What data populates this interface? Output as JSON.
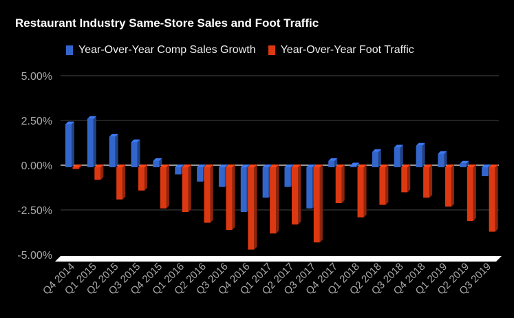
{
  "chart_data": {
    "type": "bar",
    "title": "Restaurant Industry Same-Store Sales and Foot Traffic",
    "categories": [
      "Q4 2014",
      "Q1 2015",
      "Q2 2015",
      "Q3 2015",
      "Q4 2015",
      "Q1 2016",
      "Q2 2016",
      "Q3 2016",
      "Q4 2016",
      "Q1 2017",
      "Q2 2017",
      "Q3 2017",
      "Q4 2017",
      "Q1 2018",
      "Q2 2018",
      "Q3 2018",
      "Q4 2018",
      "Q1 2019",
      "Q2 2019",
      "Q3 2019"
    ],
    "series": [
      {
        "name": "Year-Over-Year Comp Sales Growth",
        "color": "#3366cc",
        "values": [
          2.4,
          2.7,
          1.7,
          1.4,
          0.35,
          -0.4,
          -0.8,
          -1.1,
          -2.5,
          -1.7,
          -1.1,
          -2.3,
          0.35,
          0.1,
          0.85,
          1.1,
          1.2,
          0.75,
          0.2,
          -0.5
        ]
      },
      {
        "name": "Year-Over-Year Foot Traffic",
        "color": "#dc3912",
        "values": [
          -0.1,
          -0.7,
          -1.8,
          -1.3,
          -2.3,
          -2.5,
          -3.1,
          -3.5,
          -4.6,
          -3.7,
          -3.2,
          -4.2,
          -2.0,
          -2.8,
          -2.1,
          -1.4,
          -1.7,
          -2.2,
          -3.0,
          -3.6
        ]
      }
    ],
    "yticks": [
      "5.00%",
      "2.50%",
      "0.00%",
      "-2.50%",
      "-5.00%"
    ],
    "ytick_values": [
      5,
      2.5,
      0,
      -2.5,
      -5
    ],
    "ylim": [
      -5,
      5
    ],
    "xlabel": "",
    "ylabel": "",
    "legend_position": "top",
    "grid": true
  }
}
